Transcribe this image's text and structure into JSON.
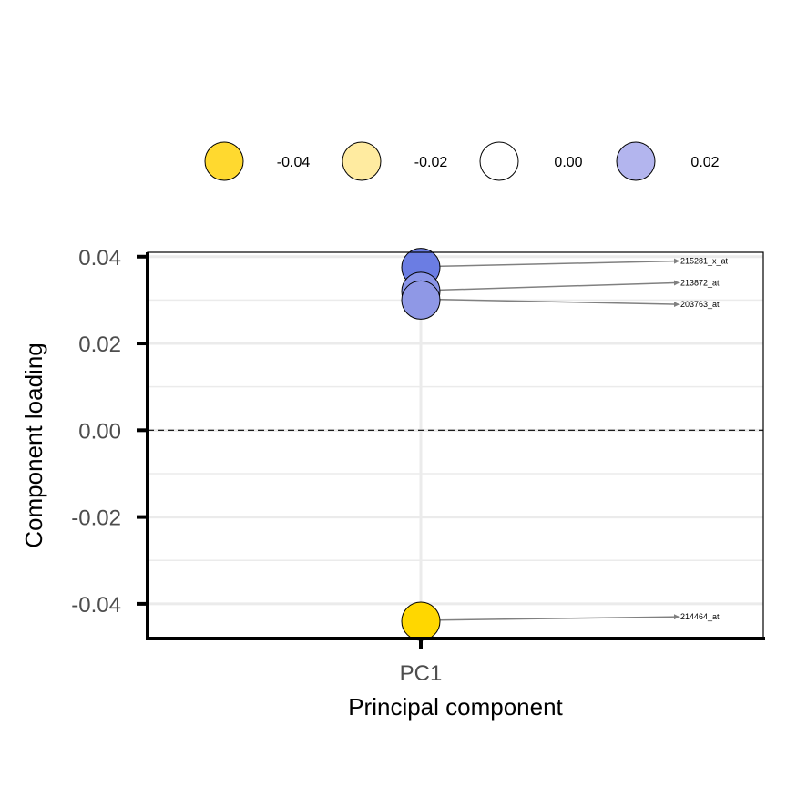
{
  "chart_data": {
    "type": "scatter",
    "title": "",
    "xlabel": "Principal component",
    "ylabel": "Component loading",
    "categories": [
      "PC1"
    ],
    "ylim": [
      -0.048,
      0.041
    ],
    "yticks": [
      {
        "value": 0.04,
        "label": "0.04"
      },
      {
        "value": 0.02,
        "label": "0.02"
      },
      {
        "value": 0.0,
        "label": "0.00"
      },
      {
        "value": -0.02,
        "label": "-0.02"
      },
      {
        "value": -0.04,
        "label": "-0.04"
      }
    ],
    "reference_line": {
      "value": 0.0,
      "style": "dashed"
    },
    "grid": true,
    "legend": {
      "position": "top",
      "items": [
        {
          "label": "-0.04",
          "color": "#FFD92F"
        },
        {
          "label": "-0.02",
          "color": "#FFEBA0"
        },
        {
          "label": "0.00",
          "color": "#FFFFFF"
        },
        {
          "label": "0.02",
          "color": "#B3B5EE"
        }
      ]
    },
    "points": [
      {
        "x": "PC1",
        "y": 0.0375,
        "label": "215281_x_at",
        "color": "#6B7DE3",
        "label_y": 0.039
      },
      {
        "x": "PC1",
        "y": 0.032,
        "label": "213872_at",
        "color": "#8A95E8",
        "label_y": 0.034
      },
      {
        "x": "PC1",
        "y": 0.03,
        "label": "203763_at",
        "color": "#8F98E6",
        "label_y": 0.029
      },
      {
        "x": "PC1",
        "y": -0.044,
        "label": "214464_at",
        "color": "#FFD700",
        "label_y": -0.043
      }
    ]
  }
}
